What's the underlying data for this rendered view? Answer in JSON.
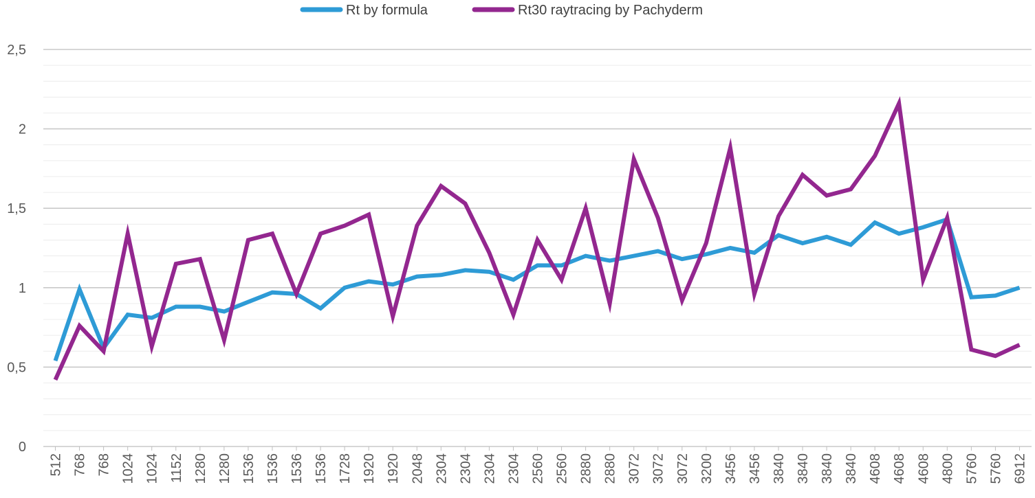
{
  "chart_data": {
    "type": "line",
    "title": "",
    "xlabel": "",
    "ylabel": "",
    "ylim": [
      0,
      2.5
    ],
    "y_ticks": [
      "0",
      "0,5",
      "1",
      "1,5",
      "2",
      "2,5"
    ],
    "y_tick_values": [
      0,
      0.5,
      1,
      1.5,
      2,
      2.5
    ],
    "minor_grid_step": 0.1,
    "legend_position": "top-center",
    "categories": [
      "512",
      "768",
      "768",
      "1024",
      "1024",
      "1152",
      "1280",
      "1280",
      "1536",
      "1536",
      "1536",
      "1536",
      "1728",
      "1920",
      "1920",
      "2048",
      "2304",
      "2304",
      "2304",
      "2304",
      "2560",
      "2560",
      "2880",
      "2880",
      "3072",
      "3072",
      "3072",
      "3200",
      "3456",
      "3456",
      "3840",
      "3840",
      "3840",
      "3840",
      "4608",
      "4608",
      "4608",
      "4800",
      "5760",
      "5760",
      "6912"
    ],
    "series": [
      {
        "name": "Rt by formula",
        "color": "#2E9BD6",
        "values": [
          0.54,
          0.99,
          0.62,
          0.83,
          0.81,
          0.88,
          0.88,
          0.85,
          0.91,
          0.97,
          0.96,
          0.87,
          1.0,
          1.04,
          1.02,
          1.07,
          1.08,
          1.11,
          1.1,
          1.05,
          1.14,
          1.14,
          1.2,
          1.17,
          1.2,
          1.23,
          1.18,
          1.21,
          1.25,
          1.22,
          1.33,
          1.28,
          1.32,
          1.27,
          1.41,
          1.34,
          1.38,
          1.43,
          0.94,
          0.95,
          1.0
        ]
      },
      {
        "name": "Rt30 raytracing by Pachyderm",
        "color": "#93278F",
        "values": [
          0.42,
          0.76,
          0.6,
          1.34,
          0.63,
          1.15,
          1.18,
          0.67,
          1.3,
          1.34,
          0.96,
          1.34,
          1.39,
          1.46,
          0.82,
          1.39,
          1.64,
          1.53,
          1.22,
          0.83,
          1.3,
          1.05,
          1.5,
          0.9,
          1.81,
          1.44,
          0.92,
          1.28,
          1.88,
          0.96,
          1.45,
          1.71,
          1.58,
          1.62,
          1.83,
          2.16,
          1.05,
          1.44,
          0.61,
          0.57,
          0.64
        ]
      }
    ]
  }
}
